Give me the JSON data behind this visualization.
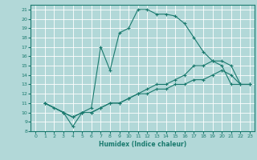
{
  "xlabel": "Humidex (Indice chaleur)",
  "xlim": [
    -0.5,
    23.5
  ],
  "ylim": [
    8,
    21.5
  ],
  "yticks": [
    8,
    9,
    10,
    11,
    12,
    13,
    14,
    15,
    16,
    17,
    18,
    19,
    20,
    21
  ],
  "xticks": [
    0,
    1,
    2,
    3,
    4,
    5,
    6,
    7,
    8,
    9,
    10,
    11,
    12,
    13,
    14,
    15,
    16,
    17,
    18,
    19,
    20,
    21,
    22,
    23
  ],
  "bg_color": "#b2d8d8",
  "line_color": "#1a7a6e",
  "grid_color": "#ffffff",
  "line1_x": [
    1,
    2,
    3,
    4,
    5,
    6,
    7,
    8,
    9,
    10,
    11,
    12,
    13,
    14,
    15,
    16,
    17,
    18,
    19,
    20,
    21,
    22,
    23
  ],
  "line1_y": [
    11,
    10.5,
    10,
    8.5,
    10,
    10.5,
    17,
    14.5,
    18.5,
    19,
    21,
    21,
    20.5,
    20.5,
    20.3,
    19.5,
    18,
    16.5,
    15.5,
    15,
    13,
    13,
    13
  ],
  "line2_x": [
    1,
    3,
    4,
    5,
    6,
    7,
    8,
    9,
    10,
    11,
    12,
    13,
    14,
    15,
    16,
    17,
    18,
    19,
    20,
    21,
    22,
    23
  ],
  "line2_y": [
    11,
    10,
    9.5,
    10,
    10,
    10.5,
    11,
    11,
    11.5,
    12,
    12.5,
    13,
    13,
    13.5,
    14,
    15,
    15,
    15.5,
    15.5,
    15,
    13,
    13
  ],
  "line3_x": [
    1,
    3,
    4,
    5,
    6,
    7,
    8,
    9,
    10,
    11,
    12,
    13,
    14,
    15,
    16,
    17,
    18,
    19,
    20,
    21,
    22,
    23
  ],
  "line3_y": [
    11,
    10,
    9.5,
    10,
    10,
    10.5,
    11,
    11,
    11.5,
    12,
    12,
    12.5,
    12.5,
    13,
    13,
    13.5,
    13.5,
    14,
    14.5,
    14,
    13,
    13
  ]
}
